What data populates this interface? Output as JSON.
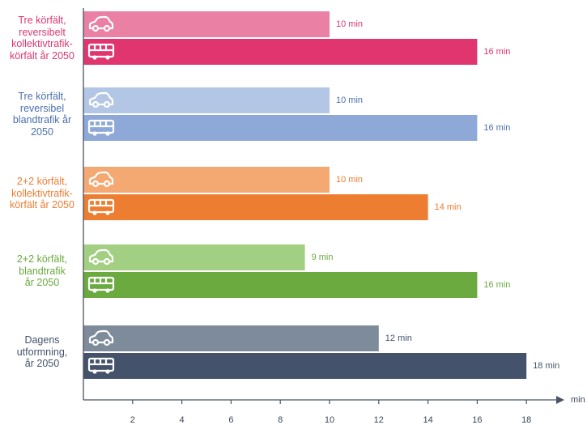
{
  "chart_data": {
    "type": "bar",
    "orientation": "horizontal",
    "xunit": "min",
    "xticks": [
      2,
      4,
      6,
      8,
      10,
      12,
      14,
      16,
      18
    ],
    "xlim": [
      0,
      19.5
    ],
    "mode_icons": [
      "car-icon",
      "bus-icon"
    ],
    "groups": [
      {
        "label": "Tre körfält, reversibelt kollektivtrafik- körfält år 2050",
        "label_lines": [
          "Tre körfält,",
          "reversibelt",
          "kollektivtrafik-",
          "körfält år 2050"
        ],
        "color": "#e0356f",
        "bars": [
          {
            "mode": "car",
            "value": 10,
            "label": "10 min",
            "color": "#ea80a3"
          },
          {
            "mode": "bus",
            "value": 16,
            "label": "16 min",
            "color": "#e0356f"
          }
        ]
      },
      {
        "label": "Tre körfält, reversibel blandtrafik år 2050",
        "label_lines": [
          "Tre körfält,",
          "reversibel",
          "blandtrafik år",
          "2050"
        ],
        "color": "#4b6fae",
        "bars": [
          {
            "mode": "car",
            "value": 10,
            "label": "10 min",
            "color": "#b4c6e5"
          },
          {
            "mode": "bus",
            "value": 16,
            "label": "16 min",
            "color": "#8ea9d8"
          }
        ]
      },
      {
        "label": "2+2 körfält, kollektivtrafik- körfält år 2050",
        "label_lines": [
          "2+2 körfält,",
          "kollektivtrafik-",
          "körfält år 2050"
        ],
        "color": "#ed7d31",
        "bars": [
          {
            "mode": "car",
            "value": 10,
            "label": "10 min",
            "color": "#f4a972"
          },
          {
            "mode": "bus",
            "value": 14,
            "label": "14 min",
            "color": "#ed7d31"
          }
        ]
      },
      {
        "label": "2+2 körfält, blandtrafik år 2050",
        "label_lines": [
          "2+2 körfält,",
          "blandtrafik",
          "år 2050"
        ],
        "color": "#6aaa3f",
        "bars": [
          {
            "mode": "car",
            "value": 9,
            "label": "9 min",
            "color": "#a3cf82"
          },
          {
            "mode": "bus",
            "value": 16,
            "label": "16 min",
            "color": "#6aaa3f"
          }
        ]
      },
      {
        "label": "Dagens utformning, år 2050",
        "label_lines": [
          "Dagens",
          "utformning,",
          "år 2050"
        ],
        "color": "#44536b",
        "bars": [
          {
            "mode": "car",
            "value": 12,
            "label": "12 min",
            "color": "#7e8b9b"
          },
          {
            "mode": "bus",
            "value": 18,
            "label": "18 min",
            "color": "#44536b"
          }
        ]
      }
    ]
  }
}
